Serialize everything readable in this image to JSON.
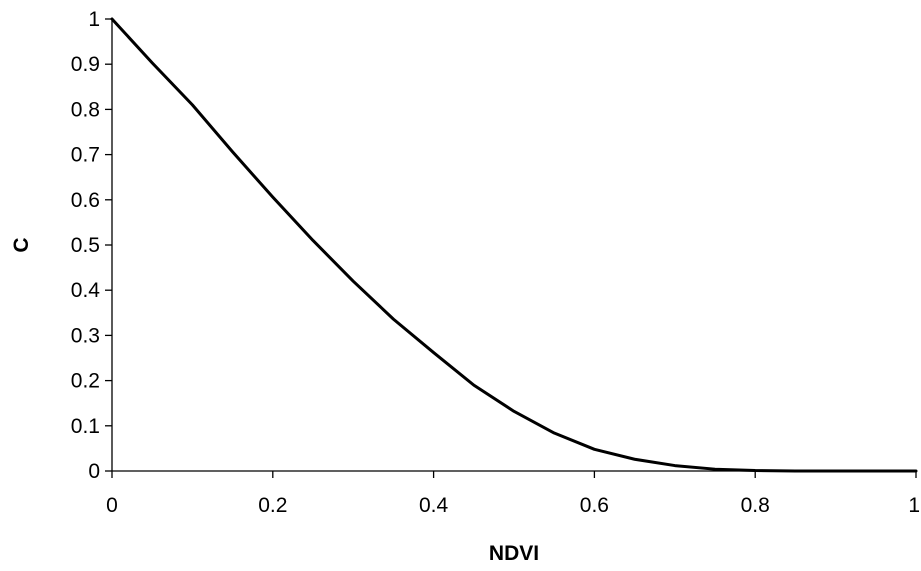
{
  "chart_data": {
    "type": "line",
    "title": "",
    "xlabel": "NDVI",
    "ylabel": "C",
    "xlim": [
      0,
      1
    ],
    "ylim": [
      0,
      1
    ],
    "grid": false,
    "legend": "none",
    "x_ticks": [
      "0",
      "0.2",
      "0.4",
      "0.6",
      "0.8",
      "1"
    ],
    "y_ticks": [
      "0",
      "0.1",
      "0.2",
      "0.3",
      "0.4",
      "0.5",
      "0.6",
      "0.7",
      "0.8",
      "0.9",
      "1"
    ],
    "series": [
      {
        "color": "#000000",
        "x": [
          0,
          0.05,
          0.1,
          0.15,
          0.2,
          0.25,
          0.3,
          0.35,
          0.4,
          0.45,
          0.5,
          0.55,
          0.6,
          0.65,
          0.7,
          0.75,
          0.8,
          0.85,
          0.9,
          0.95,
          1.0
        ],
        "y": [
          1.0,
          0.903,
          0.81,
          0.706,
          0.606,
          0.51,
          0.42,
          0.336,
          0.262,
          0.19,
          0.132,
          0.084,
          0.048,
          0.026,
          0.012,
          0.004,
          0.001,
          0.0,
          0.0,
          0.0,
          0.0
        ]
      }
    ]
  }
}
